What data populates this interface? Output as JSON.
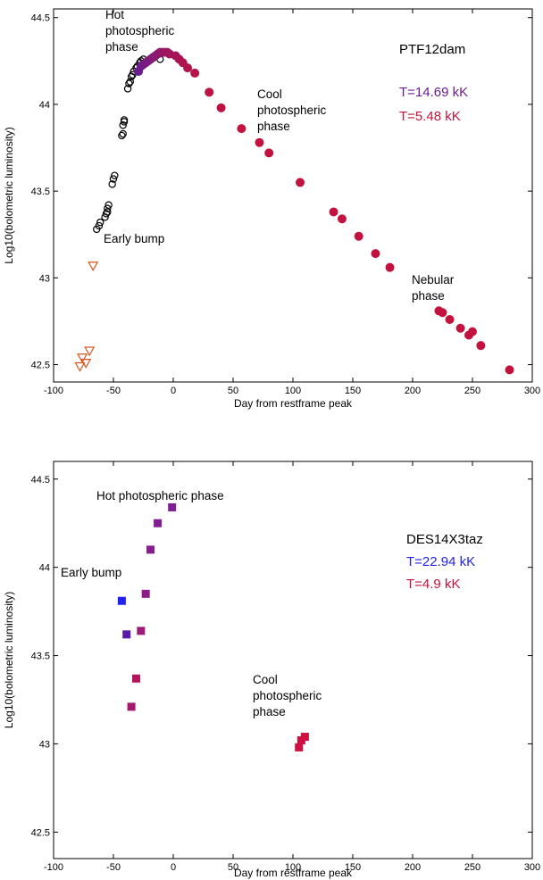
{
  "chart_data": [
    {
      "type": "scatter",
      "object_name": "PTF12dam",
      "xlabel": "Day from restframe peak",
      "ylabel": "Log10(bolometric luminosity)",
      "xlim": [
        -100,
        300
      ],
      "ylim": [
        42.4,
        44.55
      ],
      "xticks": [
        "-100",
        "-50",
        "0",
        "50",
        "100",
        "150",
        "200",
        "250",
        "300"
      ],
      "yticks": [
        "42.5",
        "43",
        "43.5",
        "44",
        "44.5"
      ],
      "temperature_labels": [
        {
          "text": "T=14.69 kK",
          "color": "#6b1d8f"
        },
        {
          "text": "T=5.48 kK",
          "color": "#c2123d"
        }
      ],
      "annotations": [
        {
          "text": [
            "Hot",
            "photospheric",
            "phase"
          ]
        },
        {
          "text": [
            "Cool",
            "photospheric",
            "phase"
          ]
        },
        {
          "text": [
            "Early bump"
          ]
        },
        {
          "text": [
            "Nebular",
            "phase"
          ]
        }
      ],
      "series": [
        {
          "marker": "open-circle",
          "color": "#000000",
          "points": [
            [
              -64,
              43.28
            ],
            [
              -62,
              43.3
            ],
            [
              -61,
              43.32
            ],
            [
              -57,
              43.35
            ],
            [
              -56,
              43.37
            ],
            [
              -55,
              43.38
            ],
            [
              -55,
              43.4
            ],
            [
              -54,
              43.42
            ],
            [
              -51,
              43.54
            ],
            [
              -50,
              43.57
            ],
            [
              -49,
              43.59
            ],
            [
              -43,
              43.82
            ],
            [
              -42,
              43.83
            ],
            [
              -42,
              43.88
            ],
            [
              -41,
              43.9
            ],
            [
              -41,
              43.91
            ],
            [
              -38,
              44.09
            ],
            [
              -37,
              44.12
            ],
            [
              -36,
              44.13
            ],
            [
              -35,
              44.16
            ],
            [
              -34,
              44.17
            ],
            [
              -33,
              44.19
            ],
            [
              -31,
              44.21
            ],
            [
              -30,
              44.22
            ],
            [
              -28,
              44.24
            ],
            [
              -27,
              44.25
            ],
            [
              -25,
              44.26
            ],
            [
              -11,
              44.26
            ]
          ]
        },
        {
          "marker": "filled-circle",
          "color_gradient": [
            "#6b1d8f",
            "#c2123d"
          ],
          "points": [
            [
              -29,
              44.19
            ],
            [
              -27,
              44.22
            ],
            [
              -25,
              44.23
            ],
            [
              -23,
              44.24
            ],
            [
              -21,
              44.25
            ],
            [
              -19,
              44.26
            ],
            [
              -17,
              44.27
            ],
            [
              -15,
              44.28
            ],
            [
              -13,
              44.29
            ],
            [
              -11,
              44.3
            ],
            [
              -9,
              44.3
            ],
            [
              -7,
              44.3
            ],
            [
              -5,
              44.3
            ],
            [
              -3,
              44.29
            ],
            [
              2,
              44.28
            ],
            [
              5,
              44.26
            ],
            [
              8,
              44.24
            ],
            [
              12,
              44.21
            ],
            [
              18,
              44.18
            ],
            [
              30,
              44.07
            ],
            [
              40,
              43.98
            ],
            [
              57,
              43.86
            ],
            [
              72,
              43.78
            ],
            [
              80,
              43.72
            ],
            [
              106,
              43.55
            ],
            [
              134,
              43.38
            ],
            [
              141,
              43.34
            ],
            [
              155,
              43.24
            ],
            [
              169,
              43.14
            ],
            [
              181,
              43.06
            ],
            [
              222,
              42.81
            ],
            [
              225,
              42.8
            ],
            [
              231,
              42.76
            ],
            [
              240,
              42.71
            ],
            [
              247,
              42.67
            ],
            [
              250,
              42.69
            ],
            [
              257,
              42.61
            ],
            [
              281,
              42.47
            ]
          ]
        },
        {
          "marker": "open-triangle-down",
          "color": "#d9531e",
          "points": [
            [
              -67,
              43.07
            ],
            [
              -70,
              42.58
            ],
            [
              -78,
              42.49
            ],
            [
              -76,
              42.54
            ],
            [
              -73,
              42.51
            ]
          ]
        }
      ]
    },
    {
      "type": "scatter",
      "object_name": "DES14X3taz",
      "xlabel": "Day from restframe peak",
      "ylabel": "Log10(bolometric luminosity)",
      "xlim": [
        -100,
        300
      ],
      "ylim": [
        42.35,
        44.6
      ],
      "xticks": [
        "-100",
        "-50",
        "0",
        "50",
        "100",
        "150",
        "200",
        "250",
        "300"
      ],
      "yticks": [
        "42.5",
        "43",
        "43.5",
        "44",
        "44.5"
      ],
      "temperature_labels": [
        {
          "text": "T=22.94 kK",
          "color": "#2222ee"
        },
        {
          "text": "T=4.9 kK",
          "color": "#c2123d"
        }
      ],
      "annotations": [
        {
          "text": [
            "Hot photospheric phase"
          ]
        },
        {
          "text": [
            "Early bump"
          ]
        },
        {
          "text": [
            "Cool",
            "photospheric",
            "phase"
          ]
        }
      ],
      "series": [
        {
          "marker": "filled-square",
          "points": [
            {
              "x": -43,
              "y": 43.81,
              "color": "#2222ee"
            },
            {
              "x": -39,
              "y": 43.62,
              "color": "#5a1aa8"
            },
            {
              "x": -35,
              "y": 43.21,
              "color": "#a4186e"
            },
            {
              "x": -31,
              "y": 43.37,
              "color": "#b3155a"
            },
            {
              "x": -27,
              "y": 43.64,
              "color": "#9c1a78"
            },
            {
              "x": -23,
              "y": 43.85,
              "color": "#8e1c88"
            },
            {
              "x": -19,
              "y": 44.1,
              "color": "#861e8e"
            },
            {
              "x": -13,
              "y": 44.25,
              "color": "#821e92"
            },
            {
              "x": -1,
              "y": 44.34,
              "color": "#801e96"
            },
            {
              "x": 105,
              "y": 42.98,
              "color": "#d01040"
            },
            {
              "x": 107,
              "y": 43.02,
              "color": "#d01040"
            },
            {
              "x": 110,
              "y": 43.04,
              "color": "#d01040"
            }
          ]
        }
      ]
    }
  ]
}
